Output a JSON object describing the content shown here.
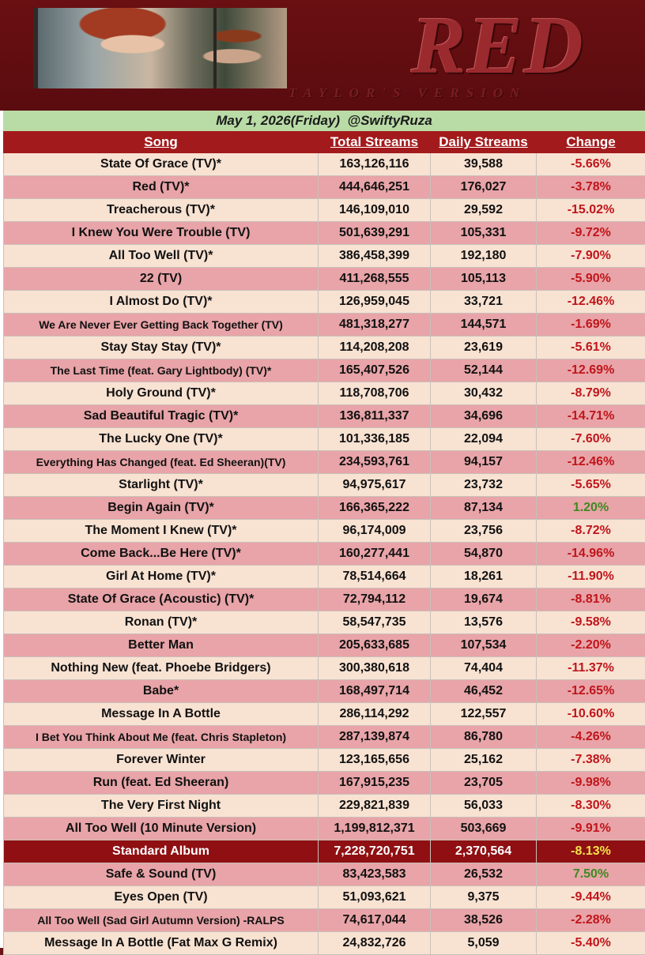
{
  "header": {
    "logo": "RED",
    "sublogo": "TAYLOR'S VERSION"
  },
  "date_line": {
    "date": "May 1, 2026(Friday)",
    "handle": "@SwiftyRuza"
  },
  "columns": [
    "Song",
    "Total Streams",
    "Daily Streams",
    "Change"
  ],
  "colors": {
    "header_bg": "#a31a1c",
    "row_odd": "#f8e2d2",
    "row_even": "#e8a4a8",
    "album_row": "#8f0f12",
    "negative": "#c0151b",
    "positive": "#3f8a22",
    "album_change": "#f3e24a",
    "date_bar": "#b9dba6"
  },
  "rows": [
    {
      "song": "State Of Grace (TV)*",
      "total": "163,126,116",
      "daily": "39,588",
      "change": "-5.66%"
    },
    {
      "song": "Red (TV)*",
      "total": "444,646,251",
      "daily": "176,027",
      "change": "-3.78%"
    },
    {
      "song": "Treacherous (TV)*",
      "total": "146,109,010",
      "daily": "29,592",
      "change": "-15.02%"
    },
    {
      "song": "I Knew You Were Trouble (TV)",
      "total": "501,639,291",
      "daily": "105,331",
      "change": "-9.72%"
    },
    {
      "song": "All Too Well (TV)*",
      "total": "386,458,399",
      "daily": "192,180",
      "change": "-7.90%"
    },
    {
      "song": "22 (TV)",
      "total": "411,268,555",
      "daily": "105,113",
      "change": "-5.90%"
    },
    {
      "song": "I Almost Do (TV)*",
      "total": "126,959,045",
      "daily": "33,721",
      "change": "-12.46%"
    },
    {
      "song": "We Are Never Ever Getting Back Together (TV)",
      "total": "481,318,277",
      "daily": "144,571",
      "change": "-1.69%"
    },
    {
      "song": "Stay Stay Stay (TV)*",
      "total": "114,208,208",
      "daily": "23,619",
      "change": "-5.61%"
    },
    {
      "song": "The Last Time (feat. Gary Lightbody) (TV)*",
      "total": "165,407,526",
      "daily": "52,144",
      "change": "-12.69%"
    },
    {
      "song": "Holy Ground (TV)*",
      "total": "118,708,706",
      "daily": "30,432",
      "change": "-8.79%"
    },
    {
      "song": "Sad Beautiful Tragic (TV)*",
      "total": "136,811,337",
      "daily": "34,696",
      "change": "-14.71%"
    },
    {
      "song": "The Lucky One (TV)*",
      "total": "101,336,185",
      "daily": "22,094",
      "change": "-7.60%"
    },
    {
      "song": "Everything Has Changed (feat. Ed Sheeran)(TV)",
      "total": "234,593,761",
      "daily": "94,157",
      "change": "-12.46%"
    },
    {
      "song": "Starlight (TV)*",
      "total": "94,975,617",
      "daily": "23,732",
      "change": "-5.65%"
    },
    {
      "song": "Begin Again (TV)*",
      "total": "166,365,222",
      "daily": "87,134",
      "change": "1.20%"
    },
    {
      "song": "The Moment I Knew (TV)*",
      "total": "96,174,009",
      "daily": "23,756",
      "change": "-8.72%"
    },
    {
      "song": "Come Back...Be Here (TV)*",
      "total": "160,277,441",
      "daily": "54,870",
      "change": "-14.96%"
    },
    {
      "song": "Girl At Home (TV)*",
      "total": "78,514,664",
      "daily": "18,261",
      "change": "-11.90%"
    },
    {
      "song": "State Of Grace (Acoustic) (TV)*",
      "total": "72,794,112",
      "daily": "19,674",
      "change": "-8.81%"
    },
    {
      "song": "Ronan (TV)*",
      "total": "58,547,735",
      "daily": "13,576",
      "change": "-9.58%"
    },
    {
      "song": "Better Man",
      "total": "205,633,685",
      "daily": "107,534",
      "change": "-2.20%"
    },
    {
      "song": "Nothing New (feat. Phoebe Bridgers)",
      "total": "300,380,618",
      "daily": "74,404",
      "change": "-11.37%"
    },
    {
      "song": "Babe*",
      "total": "168,497,714",
      "daily": "46,452",
      "change": "-12.65%"
    },
    {
      "song": "Message In A Bottle",
      "total": "286,114,292",
      "daily": "122,557",
      "change": "-10.60%"
    },
    {
      "song": "I Bet You Think About Me (feat. Chris Stapleton)",
      "total": "287,139,874",
      "daily": "86,780",
      "change": "-4.26%"
    },
    {
      "song": "Forever Winter",
      "total": "123,165,656",
      "daily": "25,162",
      "change": "-7.38%"
    },
    {
      "song": "Run (feat. Ed Sheeran)",
      "total": "167,915,235",
      "daily": "23,705",
      "change": "-9.98%"
    },
    {
      "song": "The Very First Night",
      "total": "229,821,839",
      "daily": "56,033",
      "change": "-8.30%"
    },
    {
      "song": "All Too Well (10 Minute Version)",
      "total": "1,199,812,371",
      "daily": "503,669",
      "change": "-9.91%"
    },
    {
      "song": "Standard Album",
      "total": "7,228,720,751",
      "daily": "2,370,564",
      "change": "-8.13%",
      "album": true
    },
    {
      "song": "Safe & Sound (TV)",
      "total": "83,423,583",
      "daily": "26,532",
      "change": "7.50%"
    },
    {
      "song": "Eyes Open (TV)",
      "total": "51,093,621",
      "daily": "9,375",
      "change": "-9.44%"
    },
    {
      "song": "All Too Well (Sad Girl Autumn Version) -RALPS",
      "total": "74,617,044",
      "daily": "38,526",
      "change": "-2.28%"
    },
    {
      "song": "Message In A Bottle (Fat Max G Remix)",
      "total": "24,832,726",
      "daily": "5,059",
      "change": "-5.40%"
    }
  ]
}
